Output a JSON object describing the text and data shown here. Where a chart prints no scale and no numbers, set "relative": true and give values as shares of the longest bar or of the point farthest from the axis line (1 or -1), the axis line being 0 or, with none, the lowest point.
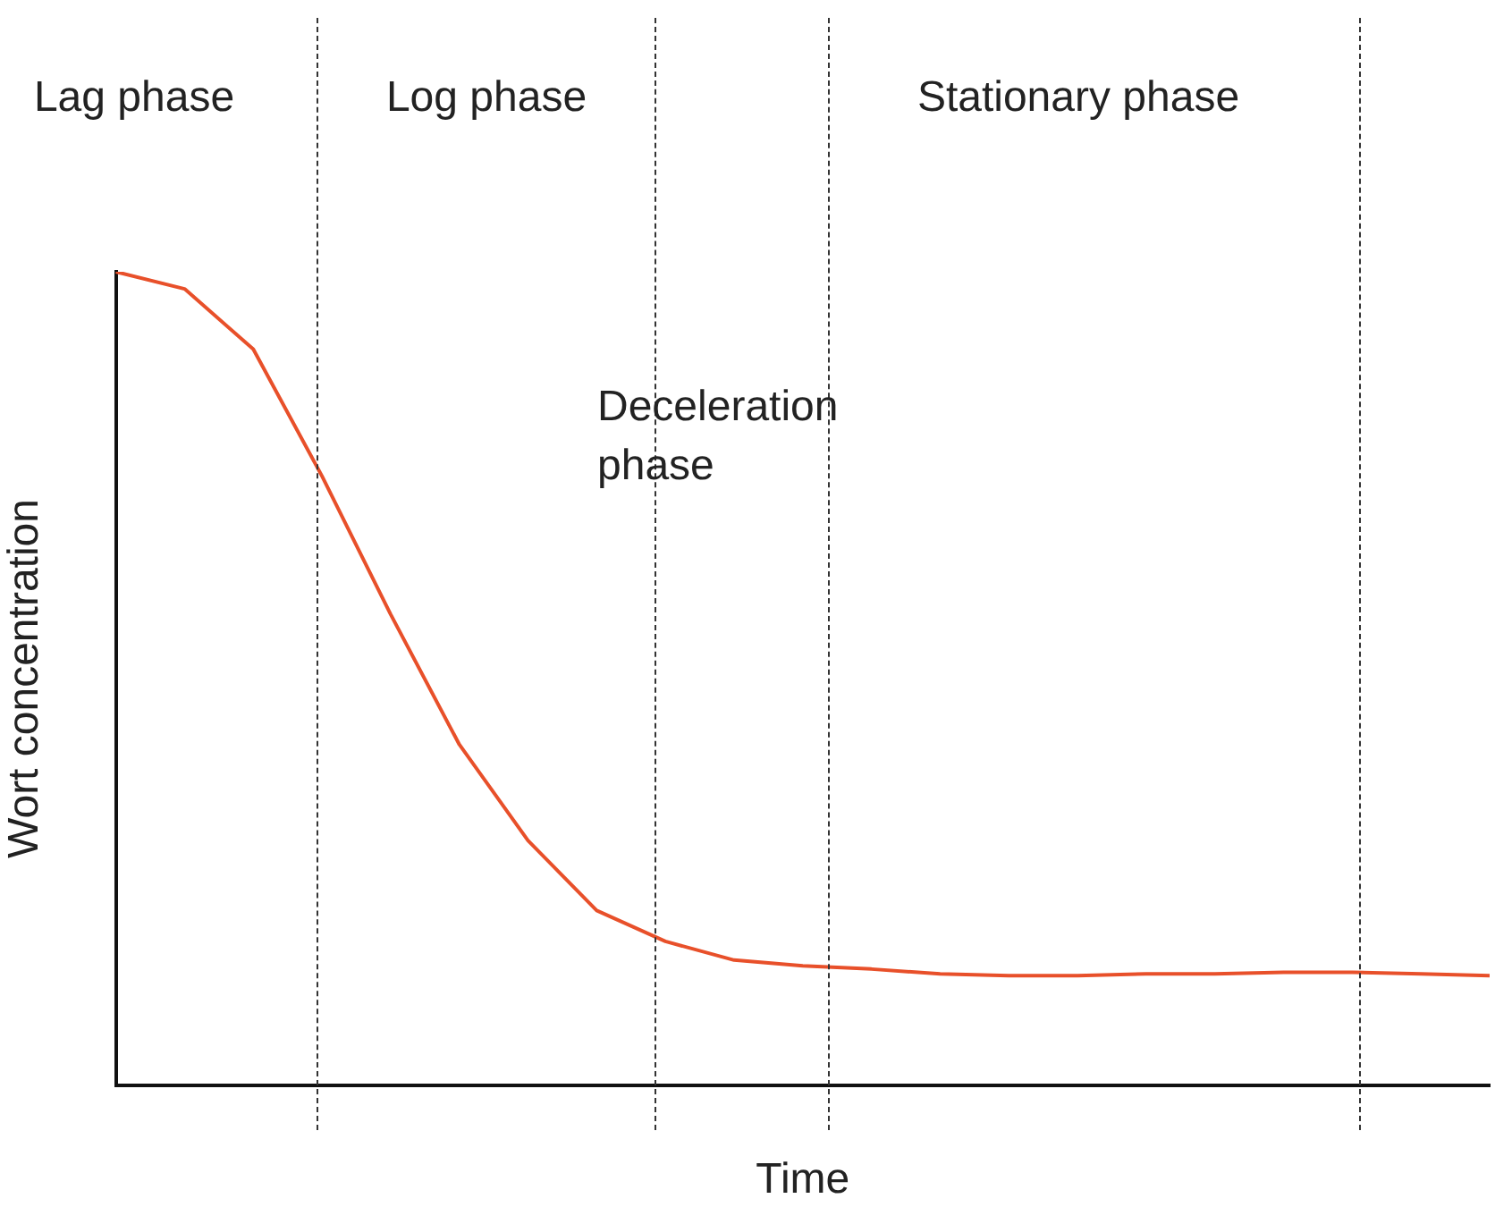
{
  "chart_data": {
    "type": "line",
    "relative": true,
    "xlabel": "Time",
    "ylabel": "Wort concentration",
    "legend": false,
    "marker": "none",
    "line_style": "solid",
    "categories": [
      null,
      null,
      null,
      null,
      null,
      null,
      null,
      null,
      null,
      null,
      null,
      null,
      null,
      null,
      null,
      null,
      null,
      null,
      null,
      null,
      null
    ],
    "series": [
      {
        "color": "#e8502a",
        "values": [
          1,
          0.979,
          0.905,
          0.749,
          0.579,
          0.419,
          0.301,
          0.215,
          0.177,
          0.154,
          0.147,
          0.143,
          0.137,
          0.135,
          0.135,
          0.137,
          0.137,
          0.139,
          0.139,
          0.137,
          0.135
        ]
      }
    ],
    "annotations": [
      "Lag phase",
      "Log phase",
      "Deceleration phase",
      "Stationary phase"
    ]
  }
}
